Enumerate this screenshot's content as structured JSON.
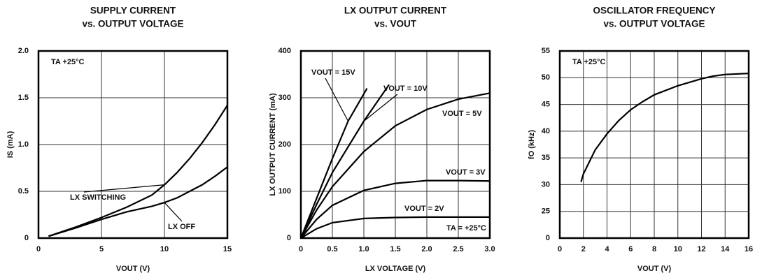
{
  "chart_data": [
    {
      "type": "line",
      "title": "SUPPLY CURRENT",
      "subtitle": "vs. OUTPUT VOLTAGE",
      "x_label": "VOUT (V)",
      "y_label": "IS (mA)",
      "annotation": "TA +25°C",
      "xlim": [
        0,
        15
      ],
      "xticks": [
        0,
        5,
        10,
        15
      ],
      "ylim": [
        0,
        2
      ],
      "yticks": [
        0,
        0.5,
        {
          "value": 1,
          "label": "1.0"
        },
        1.5,
        {
          "value": 2,
          "label": "2.0"
        }
      ],
      "grid": true,
      "series": [
        {
          "name": "LX SWITCHING",
          "color": "#000000",
          "x": [
            0.8,
            3,
            5,
            7,
            9,
            10,
            11,
            12,
            13,
            14,
            15
          ],
          "values": [
            0.02,
            0.12,
            0.22,
            0.33,
            0.46,
            0.57,
            0.7,
            0.85,
            1.02,
            1.21,
            1.42
          ]
        },
        {
          "name": "LX OFF",
          "color": "#000000",
          "x": [
            0.8,
            3,
            5,
            7,
            9,
            10,
            11,
            12,
            13,
            14,
            15
          ],
          "values": [
            0.02,
            0.11,
            0.2,
            0.28,
            0.34,
            0.38,
            0.43,
            0.5,
            0.57,
            0.66,
            0.76
          ]
        }
      ]
    },
    {
      "type": "line",
      "title": "LX OUTPUT CURRENT",
      "subtitle": "vs. VOUT",
      "x_label": "LX VOLTAGE (V)",
      "y_label": "LX OUTPUT CURRENT (mA)",
      "annotation": "TA = +25°C",
      "xlim": [
        0,
        3
      ],
      "xticks": [
        0,
        0.5,
        {
          "value": 1,
          "label": "1.0"
        },
        1.5,
        {
          "value": 2,
          "label": "2.0"
        },
        2.5,
        {
          "value": 3,
          "label": "3.0"
        }
      ],
      "ylim": [
        0,
        400
      ],
      "yticks": [
        0,
        100,
        200,
        300,
        400
      ],
      "grid": true,
      "series": [
        {
          "name": "VOUT = 15V",
          "color": "#000000",
          "x": [
            0,
            0.25,
            0.5,
            0.75,
            1.05
          ],
          "values": [
            0,
            85,
            170,
            250,
            320
          ]
        },
        {
          "name": "VOUT = 10V",
          "color": "#000000",
          "x": [
            0,
            0.25,
            0.5,
            1,
            1.4
          ],
          "values": [
            0,
            72,
            140,
            250,
            328
          ]
        },
        {
          "name": "VOUT = 5V",
          "color": "#000000",
          "x": [
            0,
            0.25,
            0.5,
            1,
            1.5,
            2,
            2.5,
            3
          ],
          "values": [
            0,
            60,
            110,
            185,
            240,
            275,
            297,
            310
          ]
        },
        {
          "name": "VOUT = 3V",
          "color": "#000000",
          "x": [
            0,
            0.25,
            0.5,
            1,
            1.5,
            2,
            2.5,
            3
          ],
          "values": [
            0,
            40,
            70,
            102,
            117,
            123,
            123,
            122
          ]
        },
        {
          "name": "VOUT = 2V",
          "color": "#000000",
          "x": [
            0,
            0.25,
            0.5,
            1,
            1.5,
            2,
            3
          ],
          "values": [
            0,
            20,
            33,
            42,
            44,
            45,
            45
          ]
        }
      ]
    },
    {
      "type": "line",
      "title": "OSCILLATOR FREQUENCY",
      "subtitle": "vs. OUTPUT VOLTAGE",
      "x_label": "VOUT (V)",
      "y_label": "fO (kHz)",
      "annotation": "TA +25°C",
      "xlim": [
        0,
        16
      ],
      "xticks": [
        0,
        2,
        4,
        6,
        8,
        10,
        12,
        14,
        16
      ],
      "ylim": [
        0,
        55
      ],
      "yticks": [
        0,
        25,
        30,
        35,
        40,
        45,
        50,
        55
      ],
      "grid": true,
      "series": [
        {
          "name": "fO",
          "color": "#000000",
          "x": [
            1.8,
            2,
            3,
            4,
            5,
            6,
            7,
            8,
            10,
            12,
            13,
            14,
            16
          ],
          "values": [
            30.5,
            32,
            36.5,
            39.5,
            42,
            44,
            45.5,
            46.8,
            48.5,
            49.8,
            50.3,
            50.6,
            50.8
          ]
        }
      ]
    }
  ]
}
